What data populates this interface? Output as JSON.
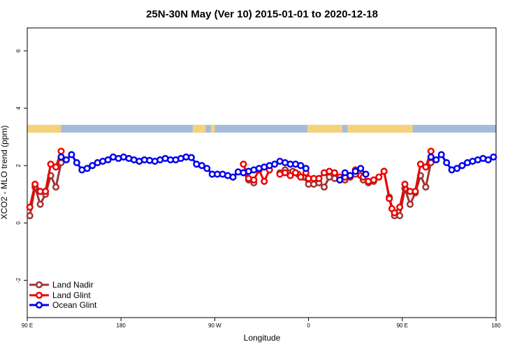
{
  "chart_data": {
    "type": "line",
    "title": "25N-30N May (Ver 10)   2015-01-01 to 2020-12-18",
    "xlabel": "Longitude",
    "ylabel": "XCO2 - MLO trend (ppm)",
    "xlim": [
      90,
      450
    ],
    "ylim": [
      -3.3,
      6.8
    ],
    "x_ticks": [
      {
        "value": 90,
        "label": "90 E"
      },
      {
        "value": 162,
        "label": "180"
      },
      {
        "value": 234,
        "label": "90 W"
      },
      {
        "value": 306,
        "label": "0"
      },
      {
        "value": 378,
        "label": "90 E"
      },
      {
        "value": 450,
        "label": "180"
      }
    ],
    "y_ticks": [
      {
        "value": -2,
        "label": "-2"
      },
      {
        "value": 0,
        "label": "0"
      },
      {
        "value": 2,
        "label": "2"
      },
      {
        "value": 4,
        "label": "4"
      },
      {
        "value": 6,
        "label": "6"
      }
    ],
    "grid": false,
    "legend": "bottom-left",
    "surface_band": {
      "y_range": [
        3.15,
        3.42
      ],
      "land_color": "#f5d27a",
      "ocean_color": "#a3bcdc",
      "land_segments": [
        [
          90,
          116
        ],
        [
          217,
          227
        ],
        [
          231,
          234
        ],
        [
          305,
          332
        ],
        [
          336,
          386
        ]
      ]
    },
    "series": [
      {
        "name": "Land Nadir",
        "color": "#9e3434",
        "x": [
          92,
          96,
          100,
          104,
          108,
          112,
          116,
          256,
          260,
          264,
          284,
          288,
          294,
          298,
          302,
          306,
          310,
          314,
          318,
          322,
          326,
          330,
          334,
          338,
          342,
          348,
          352,
          356,
          364,
          368,
          372,
          376,
          380,
          384,
          388,
          392,
          396,
          400
        ],
        "y": [
          0.25,
          1.25,
          0.65,
          1.0,
          1.65,
          1.25,
          2.1,
          1.75,
          1.5,
          1.4,
          1.75,
          1.85,
          1.8,
          1.7,
          1.6,
          1.35,
          1.35,
          1.4,
          1.25,
          1.6,
          1.55,
          1.5,
          1.5,
          1.65,
          1.7,
          1.5,
          1.4,
          1.45,
          1.8,
          0.9,
          0.25,
          0.25,
          1.2,
          0.65,
          1.05,
          1.65,
          1.25,
          2.1
        ]
      },
      {
        "name": "Land Glint",
        "color": "#ee0000",
        "x": [
          92,
          96,
          100,
          104,
          108,
          112,
          116,
          256,
          260,
          264,
          268,
          272,
          276,
          284,
          288,
          292,
          296,
          300,
          304,
          306,
          310,
          314,
          318,
          322,
          326,
          330,
          334,
          338,
          342,
          346,
          348,
          352,
          356,
          360,
          364,
          368,
          370,
          372,
          376,
          380,
          384,
          388,
          392,
          396,
          400
        ],
        "y": [
          0.55,
          1.35,
          1.1,
          1.1,
          2.05,
          1.95,
          2.5,
          2.05,
          1.55,
          1.5,
          1.85,
          1.45,
          1.85,
          1.7,
          1.75,
          1.65,
          1.75,
          1.6,
          1.75,
          1.55,
          1.55,
          1.55,
          1.75,
          1.8,
          1.75,
          1.6,
          1.6,
          1.6,
          1.85,
          1.65,
          1.6,
          1.45,
          1.5,
          1.6,
          1.8,
          0.85,
          0.5,
          0.35,
          0.55,
          1.35,
          1.1,
          1.1,
          2.05,
          1.95,
          2.5
        ]
      },
      {
        "name": "Ocean Glint",
        "color": "#0000ee",
        "x": [
          116,
          120,
          124,
          128,
          132,
          136,
          140,
          144,
          148,
          152,
          156,
          160,
          164,
          168,
          172,
          176,
          180,
          184,
          188,
          192,
          196,
          200,
          204,
          208,
          212,
          216,
          220,
          224,
          228,
          232,
          236,
          240,
          244,
          248,
          252,
          256,
          260,
          264,
          268,
          272,
          276,
          280,
          284,
          288,
          292,
          296,
          300,
          304,
          330,
          334,
          338,
          342,
          346,
          350,
          400,
          404,
          408,
          412,
          416,
          420,
          424,
          428,
          432,
          436,
          440,
          444,
          448
        ],
        "y": [
          2.3,
          2.2,
          2.38,
          2.1,
          1.85,
          1.9,
          2.0,
          2.1,
          2.15,
          2.2,
          2.3,
          2.25,
          2.3,
          2.25,
          2.2,
          2.15,
          2.2,
          2.18,
          2.15,
          2.2,
          2.25,
          2.2,
          2.2,
          2.25,
          2.3,
          2.28,
          2.05,
          2.0,
          1.9,
          1.7,
          1.7,
          1.7,
          1.65,
          1.6,
          1.78,
          1.75,
          1.8,
          1.85,
          1.9,
          1.95,
          2.0,
          2.05,
          2.15,
          2.1,
          2.05,
          2.05,
          2.0,
          1.9,
          1.5,
          1.75,
          1.65,
          1.8,
          1.9,
          1.7,
          2.3,
          2.2,
          2.38,
          2.1,
          1.85,
          1.9,
          2.0,
          2.1,
          2.15,
          2.2,
          2.25,
          2.2,
          2.3
        ]
      }
    ]
  }
}
